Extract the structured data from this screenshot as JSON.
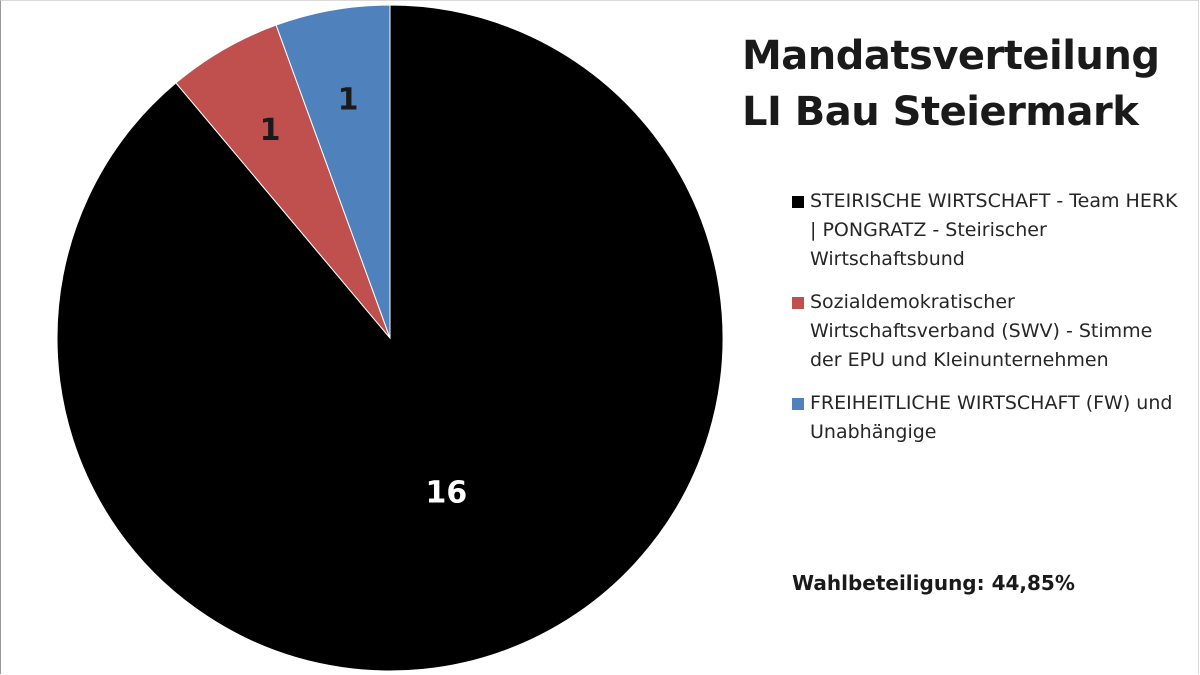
{
  "chart_data": {
    "type": "pie",
    "title": "Mandatsverteilung LI Bau Steiermark",
    "title_lines": [
      "Mandatsverteilung",
      "LI Bau Steiermark"
    ],
    "legend_position": "right",
    "slices": [
      {
        "label": "STEIRISCHE WIRTSCHAFT - Team HERK | PONGRATZ - Steirischer Wirtschaftsbund",
        "value": 16,
        "value_label": "16",
        "color": "#000000",
        "label_color": "#ffffff"
      },
      {
        "label": "Sozialdemokratischer Wirtschaftsverband (SWV) - Stimme der EPU und Kleinunternehmen",
        "value": 1,
        "value_label": "1",
        "color": "#c0504d",
        "label_color": "#1a1a1a"
      },
      {
        "label": "FREIHEITLICHE WIRTSCHAFT (FW) und Unabhängige",
        "value": 1,
        "value_label": "1",
        "color": "#4f81bd",
        "label_color": "#1a1a1a"
      }
    ]
  },
  "turnout_text": "Wahlbeteiligung: 44,85%"
}
